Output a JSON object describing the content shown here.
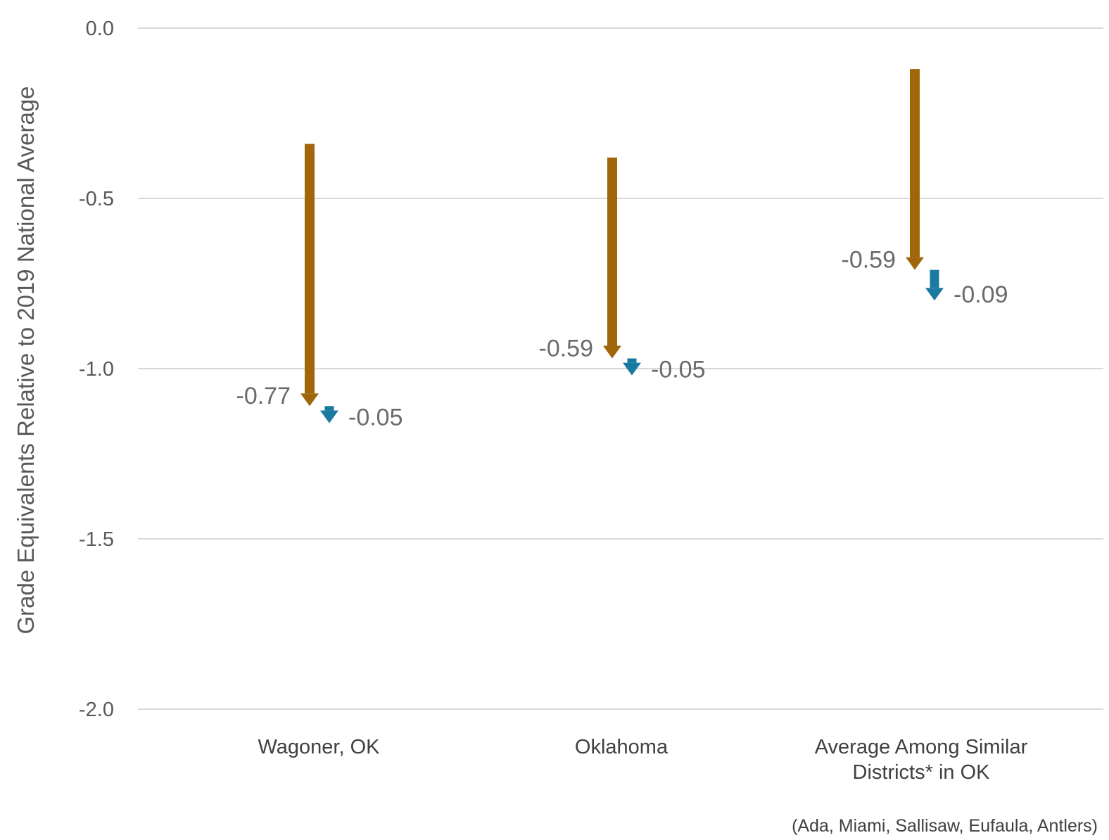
{
  "chart_data": {
    "type": "arrow",
    "ylabel": "Grade Equivalents Relative to 2019 National Average",
    "ylim": [
      -2.0,
      0.0
    ],
    "yticks": [
      {
        "value": 0.0,
        "label": "0.0"
      },
      {
        "value": -0.5,
        "label": "-0.5"
      },
      {
        "value": -1.0,
        "label": "-1.0"
      },
      {
        "value": -1.5,
        "label": "-1.5"
      },
      {
        "value": -2.0,
        "label": "-2.0"
      }
    ],
    "categories": [
      {
        "label_lines": [
          "Wagoner, OK"
        ]
      },
      {
        "label_lines": [
          "Oklahoma"
        ]
      },
      {
        "label_lines": [
          "Average Among Similar",
          "Districts* in OK"
        ]
      }
    ],
    "series": [
      {
        "color": "#a0660a",
        "points": [
          {
            "start": -0.34,
            "change": -0.77,
            "label": "-0.77"
          },
          {
            "start": -0.38,
            "change": -0.59,
            "label": "-0.59"
          },
          {
            "start": -0.12,
            "change": -0.59,
            "label": "-0.59"
          }
        ]
      },
      {
        "color": "#1a7aa0",
        "points": [
          {
            "start": -1.11,
            "change": -0.05,
            "label": "-0.05"
          },
          {
            "start": -0.97,
            "change": -0.05,
            "label": "-0.05"
          },
          {
            "start": -0.71,
            "change": -0.09,
            "label": "-0.09"
          }
        ]
      }
    ],
    "footnote": "(Ada, Miami, Sallisaw, Eufaula, Antlers)",
    "grid": true
  }
}
